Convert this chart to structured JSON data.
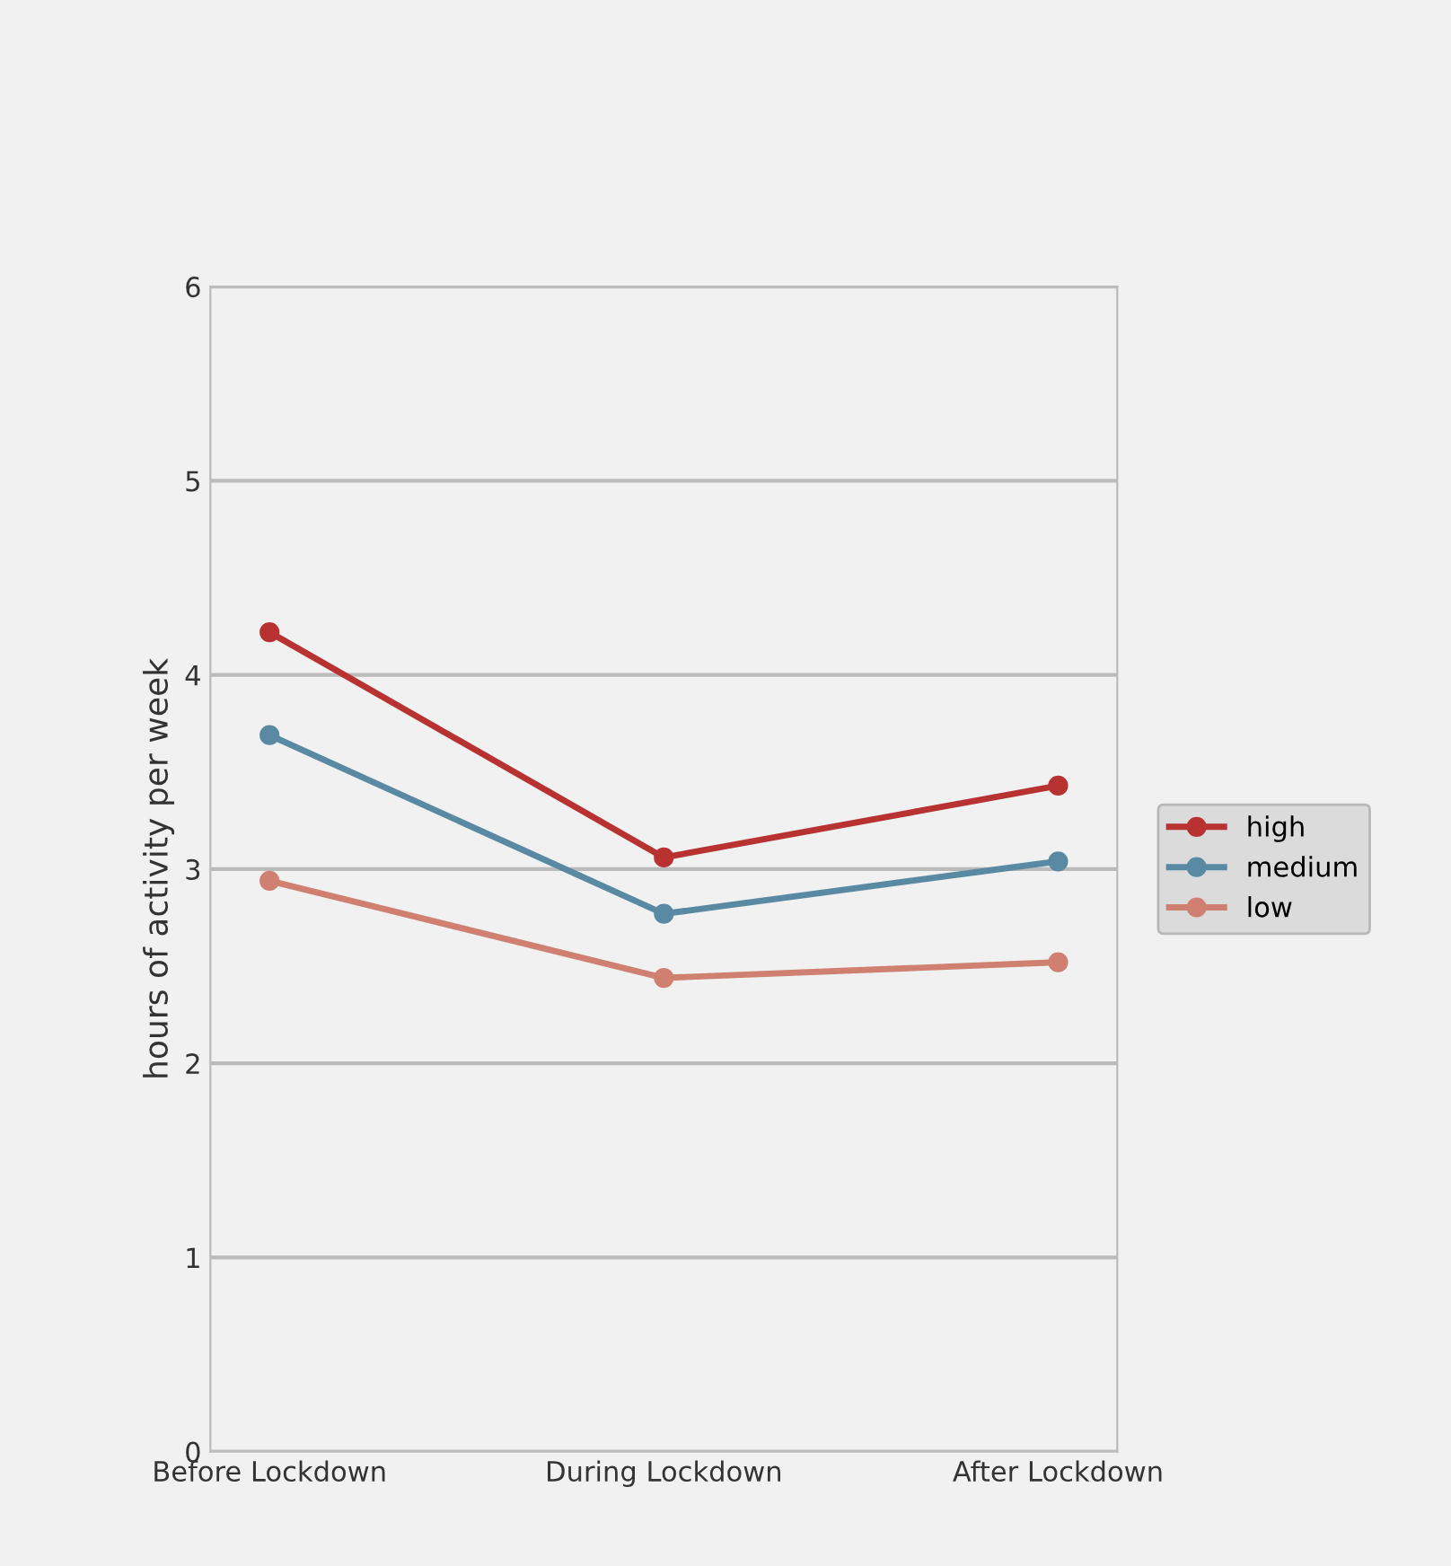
{
  "chart_data": {
    "type": "line",
    "ylabel": "hours of activity per week",
    "categories": [
      "Before Lockdown",
      "During Lockdown",
      "After Lockdown"
    ],
    "series": [
      {
        "name": "high",
        "color": "#b83232",
        "values": [
          4.22,
          3.06,
          3.43
        ]
      },
      {
        "name": "medium",
        "color": "#5a8aa3",
        "values": [
          3.69,
          2.77,
          3.04
        ]
      },
      {
        "name": "low",
        "color": "#d08070",
        "values": [
          2.94,
          2.44,
          2.52
        ]
      }
    ],
    "ylim": [
      0,
      6
    ],
    "yticks": [
      0,
      1,
      2,
      3,
      4,
      5,
      6
    ],
    "grid": "y",
    "legend": "right",
    "marker": "circle",
    "line_style": "solid"
  }
}
